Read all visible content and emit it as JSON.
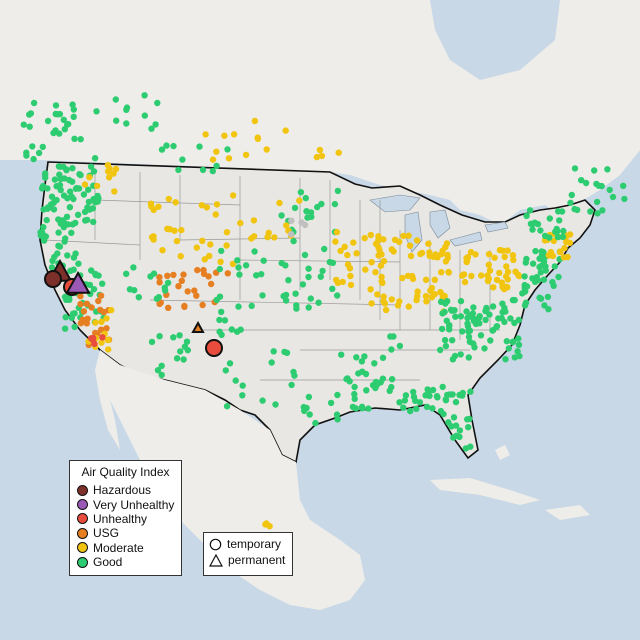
{
  "map": {
    "region": "Contiguous United States",
    "background_colors": {
      "ocean": "#c9d8e6",
      "land": "#ecebe7",
      "border": "#111111",
      "state_lines": "#9a9a9a"
    }
  },
  "legend_aqi": {
    "title": "Air Quality Index",
    "items": [
      {
        "label": "Hazardous",
        "color": "#7d2f2a"
      },
      {
        "label": "Very Unhealthy",
        "color": "#9b59b6"
      },
      {
        "label": "Unhealthy",
        "color": "#e74c3c"
      },
      {
        "label": "USG",
        "color": "#e67e22"
      },
      {
        "label": "Moderate",
        "color": "#f1c40f"
      },
      {
        "label": "Good",
        "color": "#2ecc71"
      }
    ]
  },
  "legend_type": {
    "items": [
      {
        "label": "temporary",
        "icon": "circle-icon"
      },
      {
        "label": "permanent",
        "icon": "triangle-icon"
      }
    ]
  }
}
